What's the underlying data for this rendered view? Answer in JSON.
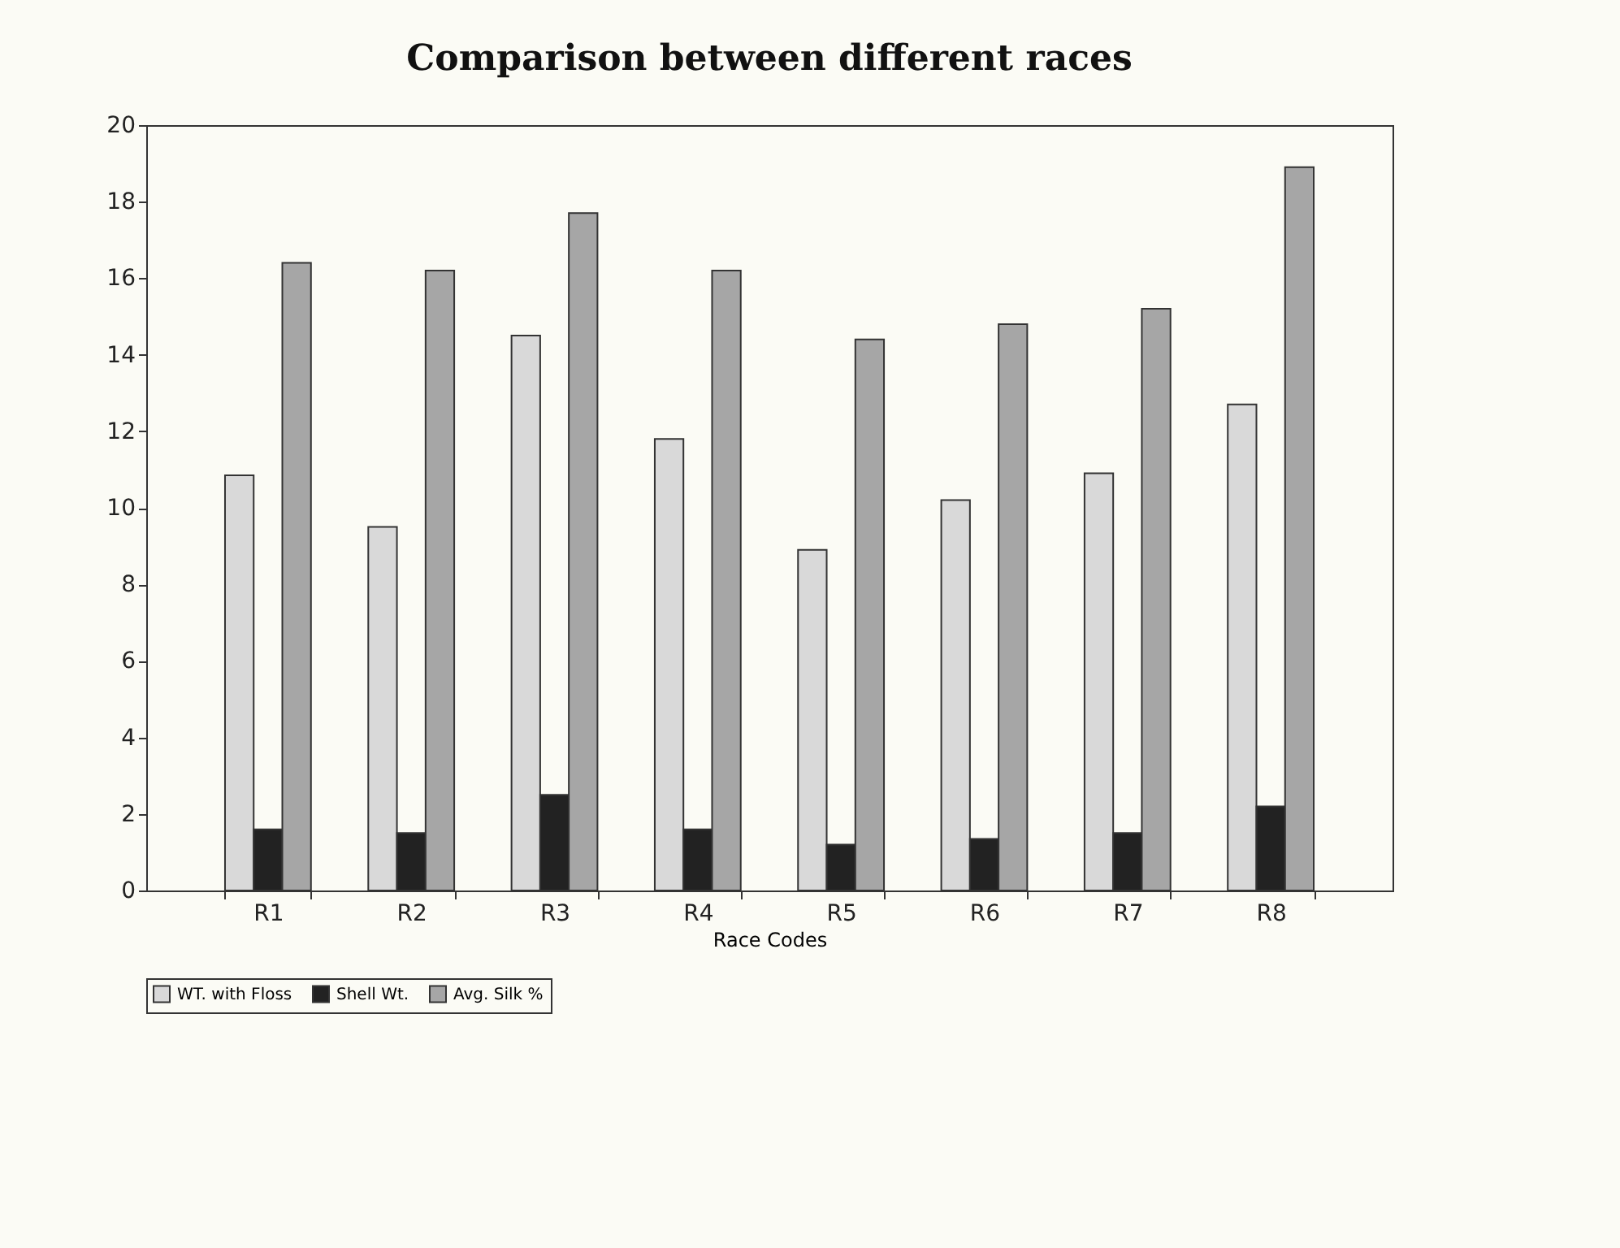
{
  "chart_data": {
    "type": "bar",
    "title": "Comparison between different races",
    "xlabel": "Race Codes",
    "categories": [
      "R1",
      "R2",
      "R3",
      "R4",
      "R5",
      "R6",
      "R7",
      "R8"
    ],
    "series": [
      {
        "name": "WT. with Floss",
        "color": "#d9d9d9",
        "values": [
          10.85,
          9.5,
          14.5,
          11.8,
          8.9,
          10.2,
          10.9,
          12.7
        ]
      },
      {
        "name": "Shell Wt.",
        "color": "#222222",
        "values": [
          1.6,
          1.5,
          2.5,
          1.6,
          1.2,
          1.35,
          1.5,
          2.2
        ]
      },
      {
        "name": "Avg. Silk %",
        "color": "#a6a6a6",
        "values": [
          16.4,
          16.2,
          17.7,
          16.2,
          14.4,
          14.8,
          15.2,
          18.9
        ]
      }
    ],
    "ylim": [
      0,
      20
    ],
    "yticks": [
      0,
      2,
      4,
      6,
      8,
      10,
      12,
      14,
      16,
      18,
      20
    ],
    "grid": false,
    "legend": "bottom"
  }
}
